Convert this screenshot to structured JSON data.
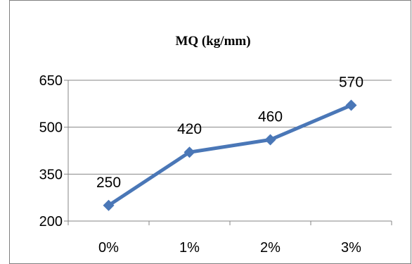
{
  "chart_data": {
    "type": "line",
    "title": "MQ  (kg/mm)",
    "xlabel": "",
    "ylabel": "",
    "categories": [
      "0%",
      "1%",
      "2%",
      "3%"
    ],
    "series": [
      {
        "values": [
          250,
          420,
          460,
          570
        ],
        "color": "#4A77B7",
        "marker": "diamond",
        "data_labels": [
          "250",
          "420",
          "460",
          "570"
        ]
      }
    ],
    "ylim": [
      200,
      650
    ],
    "yticks": [
      200,
      350,
      500,
      650
    ],
    "ytick_labels": [
      "200",
      "350",
      "500",
      "650"
    ],
    "grid": true,
    "legend": "none",
    "colors": {
      "gridline": "#868686",
      "axis": "#868686",
      "frame": "#7f7f7f"
    }
  }
}
